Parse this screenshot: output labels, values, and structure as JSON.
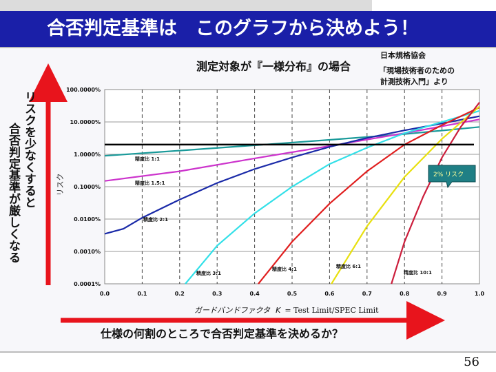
{
  "slide": {
    "title": "合否判定基準は　このグラフから決めよう！",
    "page_number": "56"
  },
  "annotations": {
    "left_arrow_text": "リスクを少なくすると",
    "left_arrow_text2": "合否判定基準が厳しくなる",
    "bottom_arrow_text": "仕様の何割のところで合否判定基準を決めるか？",
    "source_line1": "日本規格協会",
    "source_line2": "「現場技術者のための",
    "source_line3": "計測技術入門」より",
    "callout": "2% リスク",
    "risk_threshold": 2,
    "colors": {
      "accent_red": "#e8141c",
      "title_bg": "#1a1fa8"
    }
  },
  "chart_data": {
    "type": "line",
    "title": "測定対象が『一様分布』の場合",
    "xlabel_prefix": "ガードバンドファクタ",
    "xlabel_k": "K",
    "xlabel_suffix": "= Test Limit/SPEC Limit",
    "ylabel": "リスク",
    "x_ticks": [
      "0.0",
      "0.1",
      "0.2",
      "0.3",
      "0.4",
      "0.5",
      "0.6",
      "0.7",
      "0.8",
      "0.9",
      "1.0"
    ],
    "y_ticks": [
      "100.0000%",
      "10.0000%",
      "1.0000%",
      "0.1000%",
      "0.0100%",
      "0.0010%",
      "0.0001%"
    ],
    "xlim": [
      0,
      1.0
    ],
    "ylim_log10": [
      -4,
      2
    ],
    "series": [
      {
        "name": "精度比 1:1",
        "color": "#1a9a9a",
        "points": [
          [
            0.0,
            0.9
          ],
          [
            0.2,
            1.3
          ],
          [
            0.4,
            1.9
          ],
          [
            0.6,
            2.8
          ],
          [
            0.8,
            4.2
          ],
          [
            1.0,
            7.0
          ]
        ]
      },
      {
        "name": "精度比 1.5:1",
        "color": "#cc33cc",
        "points": [
          [
            0.0,
            0.15
          ],
          [
            0.2,
            0.3
          ],
          [
            0.4,
            0.75
          ],
          [
            0.6,
            1.8
          ],
          [
            0.8,
            4.5
          ],
          [
            1.0,
            12
          ]
        ]
      },
      {
        "name": "精度比 2:1",
        "color": "#1a2aa8",
        "points": [
          [
            0.0,
            0.0035
          ],
          [
            0.05,
            0.005
          ],
          [
            0.1,
            0.011
          ],
          [
            0.2,
            0.04
          ],
          [
            0.3,
            0.13
          ],
          [
            0.4,
            0.35
          ],
          [
            0.5,
            0.8
          ],
          [
            0.6,
            1.7
          ],
          [
            0.7,
            3.2
          ],
          [
            0.8,
            5.5
          ],
          [
            0.9,
            9
          ],
          [
            1.0,
            15
          ]
        ]
      },
      {
        "name": "精度比 3:1",
        "color": "#33e0e8",
        "points": [
          [
            0.215,
            0.0001
          ],
          [
            0.3,
            0.0015
          ],
          [
            0.4,
            0.015
          ],
          [
            0.5,
            0.1
          ],
          [
            0.6,
            0.5
          ],
          [
            0.7,
            1.6
          ],
          [
            0.8,
            4.5
          ],
          [
            0.9,
            10
          ],
          [
            1.0,
            22
          ]
        ]
      },
      {
        "name": "精度比 4:1",
        "color": "#e01e1e",
        "points": [
          [
            0.41,
            0.0001
          ],
          [
            0.5,
            0.002
          ],
          [
            0.6,
            0.03
          ],
          [
            0.7,
            0.3
          ],
          [
            0.8,
            2
          ],
          [
            0.9,
            8
          ],
          [
            1.0,
            28
          ]
        ]
      },
      {
        "name": "精度比 6:1",
        "color": "#e8e010",
        "points": [
          [
            0.605,
            0.0001
          ],
          [
            0.7,
            0.006
          ],
          [
            0.8,
            0.2
          ],
          [
            0.9,
            3
          ],
          [
            1.0,
            30
          ]
        ]
      },
      {
        "name": "精度比 10:1",
        "color": "#cc1e3c",
        "points": [
          [
            0.765,
            0.0001
          ],
          [
            0.8,
            0.002
          ],
          [
            0.85,
            0.05
          ],
          [
            0.9,
            0.8
          ],
          [
            0.95,
            7
          ],
          [
            1.0,
            40
          ]
        ]
      }
    ]
  }
}
